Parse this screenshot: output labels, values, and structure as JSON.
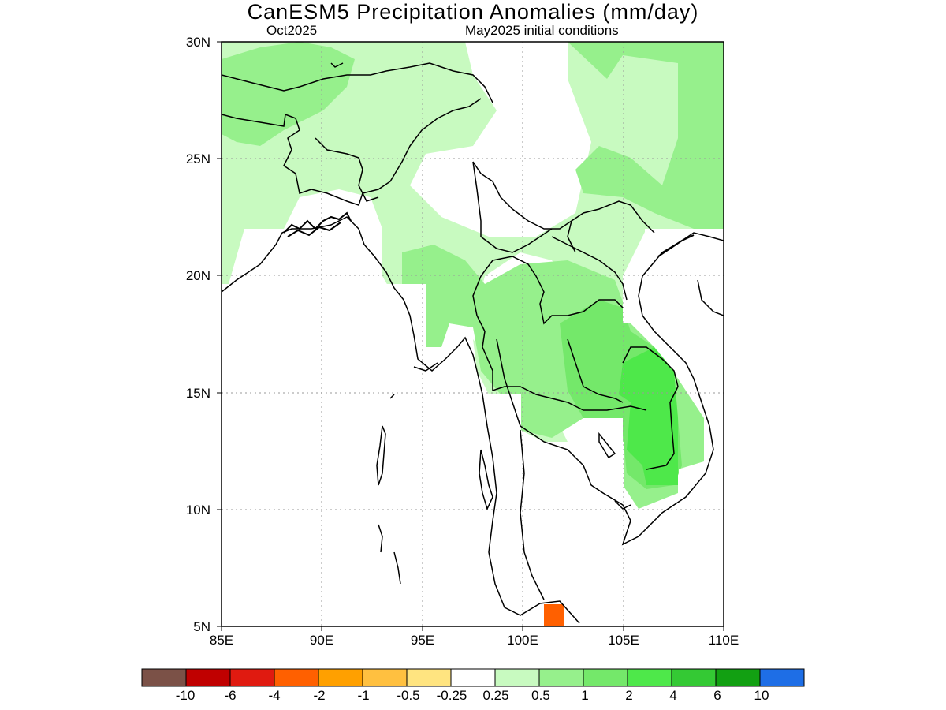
{
  "title": "CanESM5 Precipitation Anomalies (mm/day)",
  "subtitle_left": "Oct2025",
  "subtitle_right": "May2025 initial conditions",
  "axes": {
    "x_ticks": [
      "85E",
      "90E",
      "95E",
      "100E",
      "105E",
      "110E"
    ],
    "y_ticks": [
      "30N",
      "25N",
      "20N",
      "15N",
      "10N",
      "5N"
    ],
    "lon_range": [
      85,
      110
    ],
    "lat_range": [
      5,
      30
    ],
    "grid": true
  },
  "colorbar": {
    "labels": [
      "-10",
      "-6",
      "-4",
      "-2",
      "-1",
      "-0.5",
      "-0.25",
      "0.25",
      "0.5",
      "1",
      "2",
      "4",
      "6",
      "10"
    ],
    "colors": [
      "#7b5147",
      "#c00000",
      "#e01a10",
      "#ff6000",
      "#ffa000",
      "#ffc040",
      "#ffe480",
      "#ffffff",
      "#c8fac0",
      "#96f08c",
      "#74e86a",
      "#4ee84a",
      "#34c934",
      "#12a012",
      "#1e6ee6"
    ]
  },
  "map_colors": {
    "coast": "#000000",
    "grid": "#999999",
    "pos_025_05": "#c8fac0",
    "pos_05_1": "#96f08c",
    "pos_1_2": "#74e86a",
    "pos_2_4": "#4ee84a",
    "neg_2_4": "#ff6000"
  }
}
